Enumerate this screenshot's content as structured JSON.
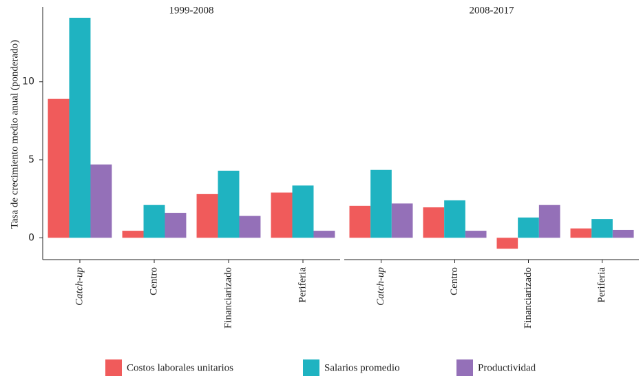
{
  "chart_data": [
    {
      "type": "bar",
      "title": "1999-2008",
      "y_label": "Tasa de crecimiento medio anual (ponderado)",
      "categories": [
        "Catch-up",
        "Centro",
        "Financiarizado",
        "Periferia"
      ],
      "series": [
        {
          "name": "Costos laborales unitarios",
          "color": "#f05b5b",
          "values": [
            8.9,
            0.45,
            2.8,
            2.9
          ]
        },
        {
          "name": "Salarios promedio",
          "color": "#1fb3c1",
          "values": [
            14.1,
            2.1,
            4.3,
            3.35
          ]
        },
        {
          "name": "Productividad",
          "color": "#9470b8",
          "values": [
            4.7,
            1.6,
            1.4,
            0.45
          ]
        }
      ],
      "ylim": [
        -1.4,
        14.8
      ],
      "yticks": [
        0,
        5,
        10
      ]
    },
    {
      "type": "bar",
      "title": "2008-2017",
      "categories": [
        "Catch-up",
        "Centro",
        "Financiarizado",
        "Periferia"
      ],
      "series": [
        {
          "name": "Costos laborales unitarios",
          "color": "#f05b5b",
          "values": [
            2.05,
            1.95,
            -0.7,
            0.6
          ]
        },
        {
          "name": "Salarios promedio",
          "color": "#1fb3c1",
          "values": [
            4.35,
            2.4,
            1.3,
            1.2
          ]
        },
        {
          "name": "Productividad",
          "color": "#9470b8",
          "values": [
            2.2,
            0.45,
            2.1,
            0.5
          ]
        }
      ],
      "ylim": [
        -1.4,
        14.8
      ]
    }
  ]
}
